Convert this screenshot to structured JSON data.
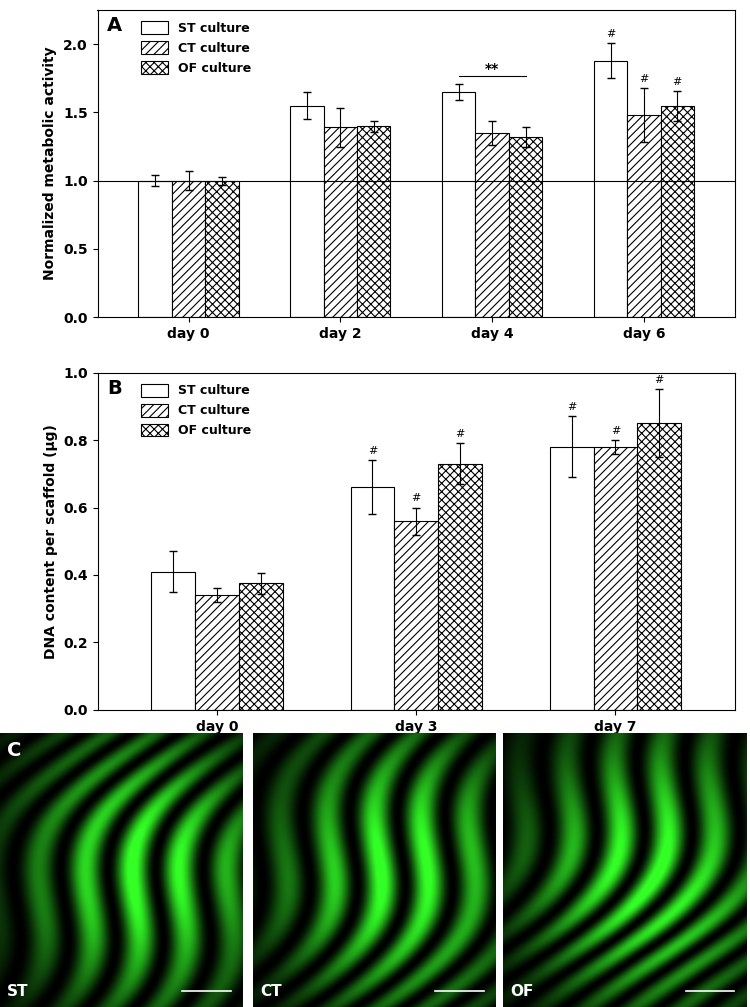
{
  "chart_data": [
    {
      "type": "bar",
      "panel": "A",
      "y_label": "Normalized metabolic activity",
      "categories": [
        "day 0",
        "day 2",
        "day 4",
        "day 6"
      ],
      "series": [
        {
          "name": "ST culture",
          "color": "#ffffff",
          "values": [
            1.0,
            1.55,
            1.65,
            1.88
          ],
          "errors": [
            0.04,
            0.1,
            0.06,
            0.13
          ],
          "marks": [
            null,
            null,
            null,
            "#"
          ]
        },
        {
          "name": "CT culture",
          "color": "#ffffff",
          "values": [
            1.0,
            1.39,
            1.35,
            1.48
          ],
          "errors": [
            0.07,
            0.14,
            0.09,
            0.2
          ],
          "marks": [
            null,
            null,
            null,
            "#"
          ]
        },
        {
          "name": "OF culture",
          "color": "#ffffff",
          "values": [
            1.0,
            1.4,
            1.32,
            1.55
          ],
          "errors": [
            0.03,
            0.04,
            0.07,
            0.11
          ],
          "marks": [
            null,
            null,
            null,
            "#"
          ]
        }
      ],
      "reference_line": 1.0,
      "brackets": [
        {
          "text": "**",
          "category": "day 4",
          "from": "ST culture",
          "to": "OF culture"
        }
      ],
      "ylim": [
        0,
        2.25
      ],
      "yticks": [
        {
          "value": 0,
          "label": "0.0"
        },
        {
          "value": 0.5,
          "label": "0.5"
        },
        {
          "value": 1.0,
          "label": "1.0"
        },
        {
          "value": 1.5,
          "label": "1.5"
        },
        {
          "value": 2.0,
          "label": "2.0"
        }
      ],
      "legend": "upper left",
      "grid": false
    },
    {
      "type": "bar",
      "panel": "B",
      "y_label": "DNA content per scaffold (µg)",
      "categories": [
        "day 0",
        "day 3",
        "day 7"
      ],
      "series": [
        {
          "name": "ST culture",
          "color": "#ffffff",
          "values": [
            0.41,
            0.66,
            0.78
          ],
          "errors": [
            0.06,
            0.08,
            0.09
          ],
          "marks": [
            null,
            "#",
            "#"
          ]
        },
        {
          "name": "CT culture",
          "color": "#ffffff",
          "values": [
            0.34,
            0.56,
            0.78
          ],
          "errors": [
            0.02,
            0.04,
            0.02
          ],
          "marks": [
            null,
            "#",
            "#"
          ]
        },
        {
          "name": "OF culture",
          "color": "#ffffff",
          "values": [
            0.375,
            0.73,
            0.85
          ],
          "errors": [
            0.03,
            0.06,
            0.1
          ],
          "marks": [
            null,
            "#",
            "#"
          ]
        }
      ],
      "brackets": [],
      "ylim": [
        0,
        1.0
      ],
      "yticks": [
        {
          "value": 0,
          "label": "0.0"
        },
        {
          "value": 0.2,
          "label": "0.2"
        },
        {
          "value": 0.4,
          "label": "0.4"
        },
        {
          "value": 0.6,
          "label": "0.6"
        },
        {
          "value": 0.8,
          "label": "0.8"
        },
        {
          "value": 1.0,
          "label": "1.0"
        }
      ],
      "legend": "upper left",
      "grid": false
    }
  ],
  "images": {
    "panel": "C",
    "labels": [
      "ST",
      "CT",
      "OF"
    ]
  }
}
